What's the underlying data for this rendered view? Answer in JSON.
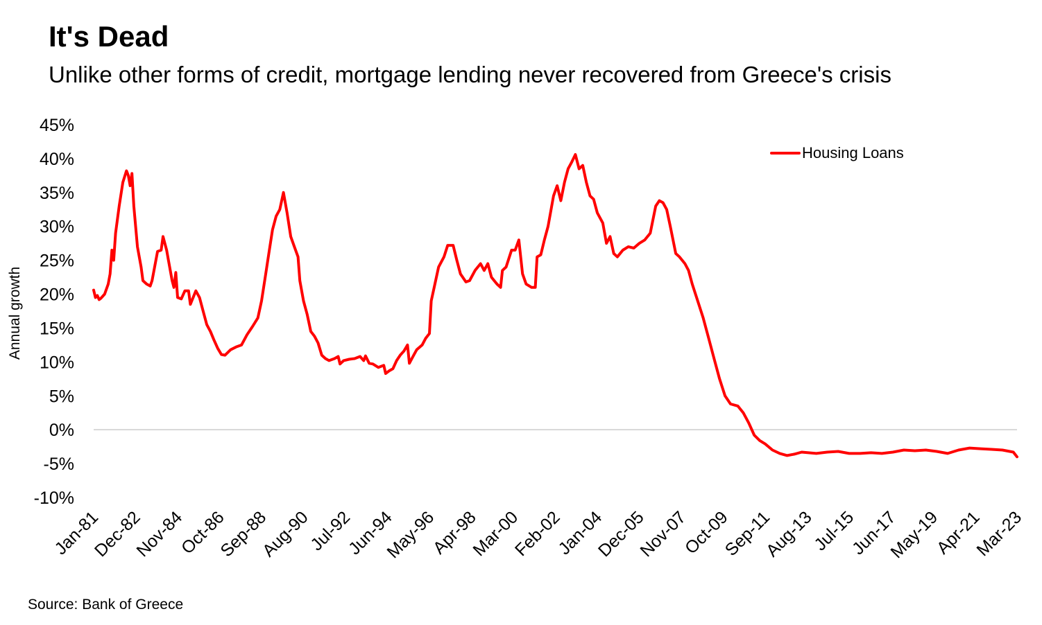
{
  "title": "It's Dead",
  "subtitle": "Unlike other forms of credit, mortgage lending never recovered from Greece's crisis",
  "source": "Source: Bank of Greece",
  "chart_data": {
    "type": "line",
    "ylabel": "Annual growth",
    "xlabel": "",
    "ylim": [
      -10,
      45
    ],
    "ytick_values": [
      45,
      40,
      35,
      30,
      25,
      20,
      15,
      10,
      5,
      0,
      -5,
      -10
    ],
    "ytick_labels": [
      "45%",
      "40%",
      "35%",
      "30%",
      "25%",
      "20%",
      "15%",
      "10%",
      "5%",
      "0%",
      "-5%",
      "-10%"
    ],
    "xlim": [
      "Jan-81",
      "Mar-23"
    ],
    "xtick_labels": [
      "Jan-81",
      "Dec-82",
      "Nov-84",
      "Oct-86",
      "Sep-88",
      "Aug-90",
      "Jul-92",
      "Jun-94",
      "May-96",
      "Apr-98",
      "Mar-00",
      "Feb-02",
      "Jan-04",
      "Dec-05",
      "Nov-07",
      "Oct-09",
      "Sep-11",
      "Aug-13",
      "Jul-15",
      "Jun-17",
      "May-19",
      "Apr-21",
      "Mar-23"
    ],
    "reference_line": 0,
    "grid": false,
    "legend": {
      "position": "top-right"
    },
    "series": [
      {
        "name": "Housing Loans",
        "color": "#ff0000",
        "points": [
          [
            "Jan-81",
            20.6
          ],
          [
            "Feb-81",
            19.5
          ],
          [
            "Mar-81",
            19.8
          ],
          [
            "Apr-81",
            19.2
          ],
          [
            "May-81",
            19.4
          ],
          [
            "Jul-81",
            20.0
          ],
          [
            "Sep-81",
            21.5
          ],
          [
            "Oct-81",
            23.0
          ],
          [
            "Nov-81",
            26.5
          ],
          [
            "Dec-81",
            25.0
          ],
          [
            "Jan-82",
            29.0
          ],
          [
            "Mar-82",
            33.0
          ],
          [
            "May-82",
            36.5
          ],
          [
            "Jul-82",
            38.2
          ],
          [
            "Aug-82",
            37.5
          ],
          [
            "Sep-82",
            36.0
          ],
          [
            "Oct-82",
            37.8
          ],
          [
            "Nov-82",
            33.0
          ],
          [
            "Jan-83",
            27.0
          ],
          [
            "Mar-83",
            24.0
          ],
          [
            "Apr-83",
            22.0
          ],
          [
            "Jun-83",
            21.5
          ],
          [
            "Aug-83",
            21.2
          ],
          [
            "Sep-83",
            22.0
          ],
          [
            "Dec-83",
            26.3
          ],
          [
            "Feb-84",
            26.5
          ],
          [
            "Mar-84",
            28.5
          ],
          [
            "May-84",
            26.5
          ],
          [
            "Jun-84",
            25.0
          ],
          [
            "Aug-84",
            22.0
          ],
          [
            "Sep-84",
            21.0
          ],
          [
            "Oct-84",
            23.2
          ],
          [
            "Nov-84",
            19.5
          ],
          [
            "Jan-85",
            19.3
          ],
          [
            "Mar-85",
            20.5
          ],
          [
            "May-85",
            20.5
          ],
          [
            "Jun-85",
            18.5
          ],
          [
            "Sep-85",
            20.5
          ],
          [
            "Nov-85",
            19.5
          ],
          [
            "Jan-86",
            17.5
          ],
          [
            "Mar-86",
            15.5
          ],
          [
            "May-86",
            14.5
          ],
          [
            "Jul-86",
            13.2
          ],
          [
            "Sep-86",
            12.0
          ],
          [
            "Nov-86",
            11.1
          ],
          [
            "Jan-87",
            11.0
          ],
          [
            "Apr-87",
            11.8
          ],
          [
            "Jul-87",
            12.2
          ],
          [
            "Oct-87",
            12.5
          ],
          [
            "Jan-88",
            14.0
          ],
          [
            "Apr-88",
            15.2
          ],
          [
            "Jul-88",
            16.5
          ],
          [
            "Sep-88",
            19.0
          ],
          [
            "Nov-88",
            22.5
          ],
          [
            "Jan-89",
            26.0
          ],
          [
            "Mar-89",
            29.5
          ],
          [
            "May-89",
            31.5
          ],
          [
            "Jul-89",
            32.5
          ],
          [
            "Sep-89",
            35.0
          ],
          [
            "Nov-89",
            32.0
          ],
          [
            "Jan-90",
            28.5
          ],
          [
            "Mar-90",
            27.0
          ],
          [
            "May-90",
            25.5
          ],
          [
            "Jun-90",
            22.0
          ],
          [
            "Aug-90",
            19.0
          ],
          [
            "Oct-90",
            17.0
          ],
          [
            "Dec-90",
            14.5
          ],
          [
            "Feb-91",
            13.8
          ],
          [
            "Apr-91",
            12.8
          ],
          [
            "Jun-91",
            11.0
          ],
          [
            "Aug-91",
            10.5
          ],
          [
            "Oct-91",
            10.2
          ],
          [
            "Jan-92",
            10.5
          ],
          [
            "Mar-92",
            10.8
          ],
          [
            "Apr-92",
            9.7
          ],
          [
            "Jun-92",
            10.2
          ],
          [
            "Sep-92",
            10.4
          ],
          [
            "Dec-92",
            10.5
          ],
          [
            "Mar-93",
            10.8
          ],
          [
            "May-93",
            10.2
          ],
          [
            "Jun-93",
            10.9
          ],
          [
            "Aug-93",
            9.8
          ],
          [
            "Oct-93",
            9.7
          ],
          [
            "Jan-94",
            9.2
          ],
          [
            "Apr-94",
            9.5
          ],
          [
            "May-94",
            8.3
          ],
          [
            "Jul-94",
            8.7
          ],
          [
            "Sep-94",
            9.0
          ],
          [
            "Nov-94",
            10.2
          ],
          [
            "Jan-95",
            11.0
          ],
          [
            "Mar-95",
            11.6
          ],
          [
            "May-95",
            12.5
          ],
          [
            "Jun-95",
            9.8
          ],
          [
            "Aug-95",
            10.8
          ],
          [
            "Oct-95",
            11.8
          ],
          [
            "Jan-96",
            12.5
          ],
          [
            "Mar-96",
            13.5
          ],
          [
            "May-96",
            14.2
          ],
          [
            "Jun-96",
            19.0
          ],
          [
            "Aug-96",
            21.5
          ],
          [
            "Oct-96",
            24.0
          ],
          [
            "Jan-97",
            25.5
          ],
          [
            "Mar-97",
            27.2
          ],
          [
            "Jun-97",
            27.2
          ],
          [
            "Aug-97",
            25.0
          ],
          [
            "Oct-97",
            23.0
          ],
          [
            "Jan-98",
            21.8
          ],
          [
            "Mar-98",
            22.0
          ],
          [
            "Jun-98",
            23.5
          ],
          [
            "Sep-98",
            24.5
          ],
          [
            "Nov-98",
            23.5
          ],
          [
            "Jan-99",
            24.5
          ],
          [
            "Mar-99",
            22.5
          ],
          [
            "Jun-99",
            21.5
          ],
          [
            "Aug-99",
            21.0
          ],
          [
            "Sep-99",
            23.5
          ],
          [
            "Nov-99",
            24.0
          ],
          [
            "Feb-00",
            26.5
          ],
          [
            "Apr-00",
            26.5
          ],
          [
            "Jun-00",
            28.0
          ],
          [
            "Aug-00",
            23.0
          ],
          [
            "Oct-00",
            21.5
          ],
          [
            "Jan-01",
            21.0
          ],
          [
            "Mar-01",
            21.0
          ],
          [
            "Apr-01",
            25.5
          ],
          [
            "Jun-01",
            25.8
          ],
          [
            "Aug-01",
            28.0
          ],
          [
            "Oct-01",
            30.0
          ],
          [
            "Jan-02",
            34.5
          ],
          [
            "Mar-02",
            36.0
          ],
          [
            "May-02",
            33.8
          ],
          [
            "Jul-02",
            36.5
          ],
          [
            "Sep-02",
            38.5
          ],
          [
            "Nov-02",
            39.5
          ],
          [
            "Jan-03",
            40.6
          ],
          [
            "Mar-03",
            38.5
          ],
          [
            "May-03",
            39.0
          ],
          [
            "Jul-03",
            36.5
          ],
          [
            "Sep-03",
            34.5
          ],
          [
            "Nov-03",
            34.0
          ],
          [
            "Jan-04",
            32.0
          ],
          [
            "Apr-04",
            30.5
          ],
          [
            "Jun-04",
            27.5
          ],
          [
            "Aug-04",
            28.5
          ],
          [
            "Oct-04",
            26.0
          ],
          [
            "Dec-04",
            25.5
          ],
          [
            "Mar-05",
            26.5
          ],
          [
            "Jun-05",
            27.0
          ],
          [
            "Sep-05",
            26.8
          ],
          [
            "Dec-05",
            27.5
          ],
          [
            "Mar-06",
            28.0
          ],
          [
            "Jun-06",
            29.0
          ],
          [
            "Sep-06",
            33.0
          ],
          [
            "Nov-06",
            33.8
          ],
          [
            "Jan-07",
            33.5
          ],
          [
            "Mar-07",
            32.5
          ],
          [
            "May-07",
            30.0
          ],
          [
            "Aug-07",
            26.0
          ],
          [
            "Oct-07",
            25.5
          ],
          [
            "Jan-08",
            24.5
          ],
          [
            "Mar-08",
            23.5
          ],
          [
            "May-08",
            21.5
          ],
          [
            "Aug-08",
            19.0
          ],
          [
            "Nov-08",
            16.5
          ],
          [
            "Feb-09",
            13.5
          ],
          [
            "May-09",
            10.5
          ],
          [
            "Aug-09",
            7.5
          ],
          [
            "Nov-09",
            5.0
          ],
          [
            "Feb-10",
            3.8
          ],
          [
            "Jun-10",
            3.5
          ],
          [
            "Sep-10",
            2.5
          ],
          [
            "Dec-10",
            1.0
          ],
          [
            "Mar-11",
            -0.8
          ],
          [
            "Jun-11",
            -1.6
          ],
          [
            "Sep-11",
            -2.1
          ],
          [
            "Jan-12",
            -3.0
          ],
          [
            "May-12",
            -3.5
          ],
          [
            "Sep-12",
            -3.8
          ],
          [
            "Jan-13",
            -3.6
          ],
          [
            "May-13",
            -3.3
          ],
          [
            "Jan-14",
            -3.5
          ],
          [
            "Jul-14",
            -3.3
          ],
          [
            "Jan-15",
            -3.2
          ],
          [
            "Jul-15",
            -3.5
          ],
          [
            "Jan-16",
            -3.5
          ],
          [
            "Jul-16",
            -3.4
          ],
          [
            "Jan-17",
            -3.5
          ],
          [
            "Jul-17",
            -3.3
          ],
          [
            "Jan-18",
            -3.0
          ],
          [
            "Jul-18",
            -3.1
          ],
          [
            "Jan-19",
            -3.0
          ],
          [
            "Jul-19",
            -3.2
          ],
          [
            "Jan-20",
            -3.5
          ],
          [
            "Jul-20",
            -3.0
          ],
          [
            "Jan-21",
            -2.7
          ],
          [
            "Jul-21",
            -2.8
          ],
          [
            "Jan-22",
            -2.9
          ],
          [
            "Jul-22",
            -3.0
          ],
          [
            "Jan-23",
            -3.3
          ],
          [
            "Mar-23",
            -4.0
          ]
        ]
      }
    ]
  }
}
